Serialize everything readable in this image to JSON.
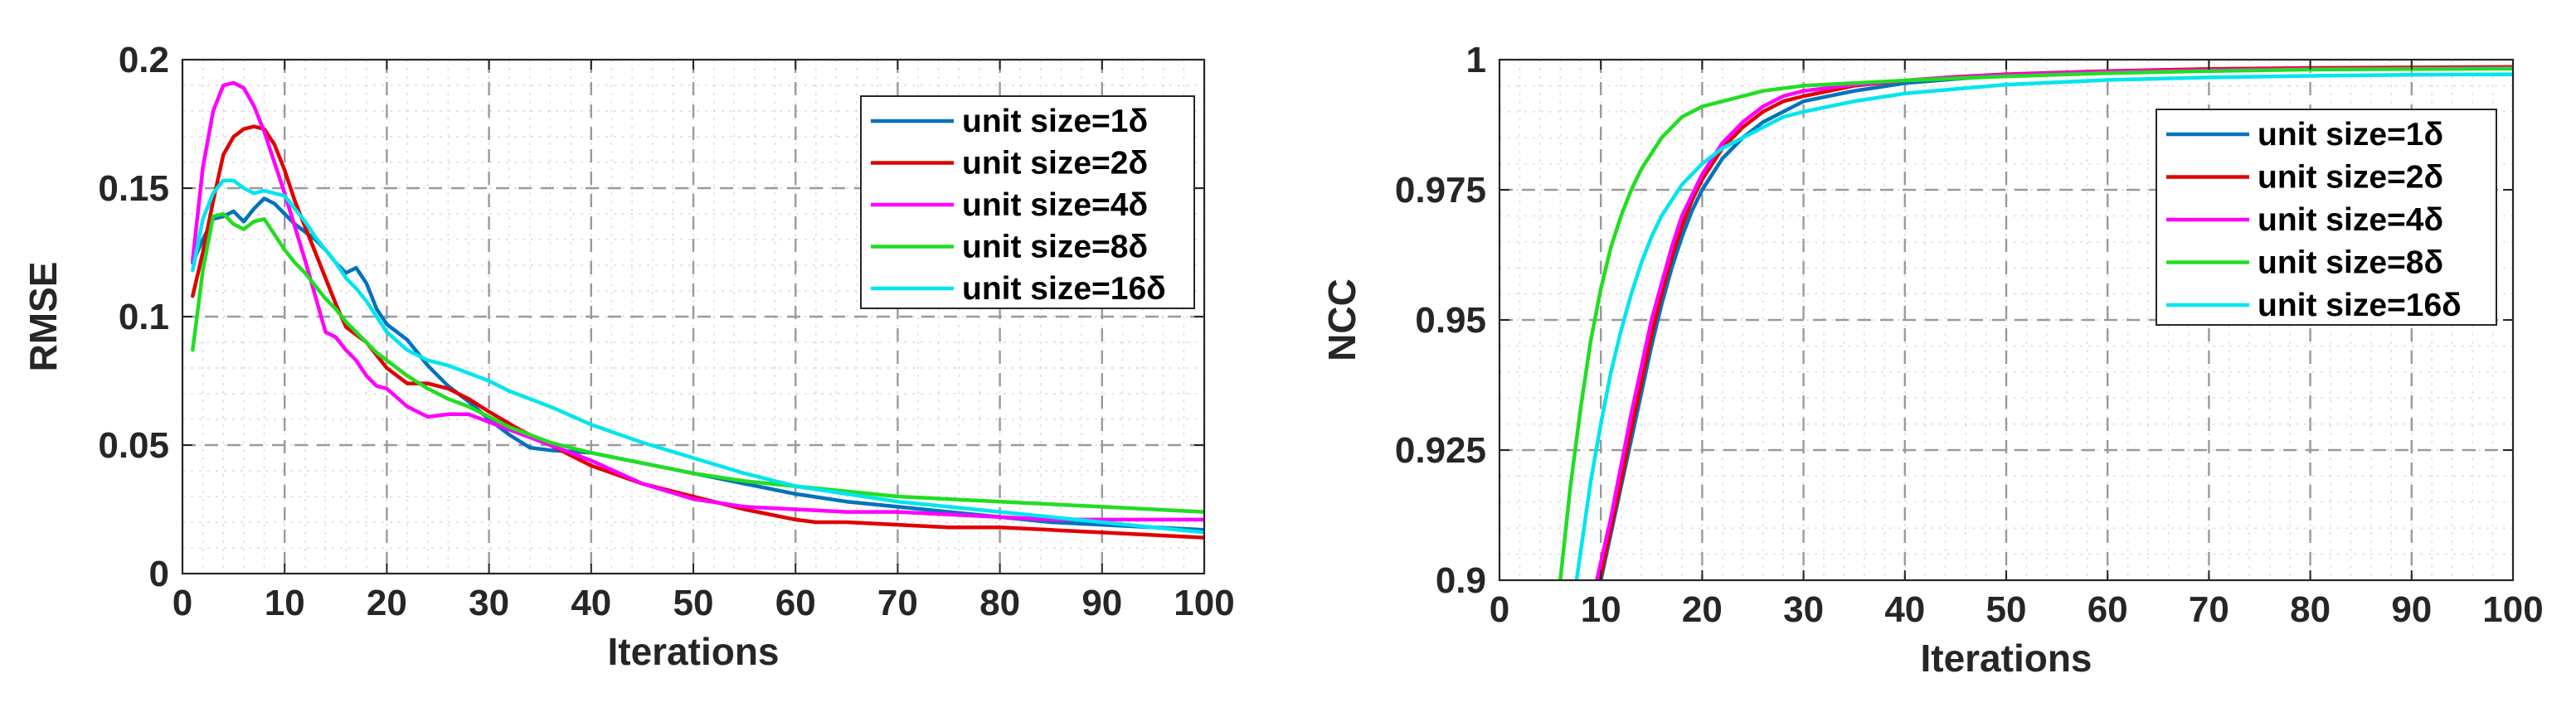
{
  "chart_data": [
    {
      "type": "line",
      "xlabel": "Iterations",
      "ylabel": "RMSE",
      "xlim": [
        0,
        100
      ],
      "ylim": [
        0,
        0.2
      ],
      "xticks": [
        0,
        10,
        20,
        30,
        40,
        50,
        60,
        70,
        80,
        90,
        100
      ],
      "xtick_labels": [
        "0",
        "10",
        "20",
        "30",
        "40",
        "50",
        "60",
        "70",
        "80",
        "90",
        "100"
      ],
      "yticks": [
        0,
        0.05,
        0.1,
        0.15,
        0.2
      ],
      "ytick_labels": [
        "0",
        "0.05",
        "0.1",
        "0.15",
        "0.2"
      ],
      "grid": true,
      "legend_position": "top-right",
      "series": [
        {
          "name": "unit size=1δ",
          "color": "#0072bd",
          "x": [
            1,
            2,
            3,
            4,
            5,
            6,
            7,
            8,
            9,
            10,
            11,
            12,
            13,
            14,
            15,
            16,
            17,
            18,
            19,
            20,
            22,
            24,
            26,
            28,
            30,
            32,
            34,
            36,
            40,
            45,
            50,
            55,
            60,
            65,
            70,
            75,
            80,
            85,
            90,
            95,
            100
          ],
          "y": [
            0.121,
            0.13,
            0.138,
            0.139,
            0.141,
            0.137,
            0.142,
            0.146,
            0.144,
            0.14,
            0.136,
            0.133,
            0.13,
            0.126,
            0.121,
            0.117,
            0.119,
            0.113,
            0.103,
            0.097,
            0.091,
            0.081,
            0.073,
            0.067,
            0.06,
            0.054,
            0.049,
            0.048,
            0.047,
            0.043,
            0.039,
            0.035,
            0.031,
            0.028,
            0.026,
            0.024,
            0.022,
            0.02,
            0.019,
            0.018,
            0.017
          ]
        },
        {
          "name": "unit size=2δ",
          "color": "#e00000",
          "x": [
            1,
            2,
            3,
            4,
            5,
            6,
            7,
            8,
            9,
            10,
            11,
            12,
            13,
            14,
            15,
            16,
            17,
            18,
            19,
            20,
            22,
            24,
            26,
            28,
            30,
            33,
            36,
            40,
            45,
            50,
            55,
            60,
            62,
            65,
            70,
            75,
            80,
            85,
            90,
            95,
            100
          ],
          "y": [
            0.108,
            0.125,
            0.145,
            0.163,
            0.17,
            0.173,
            0.174,
            0.173,
            0.167,
            0.157,
            0.145,
            0.135,
            0.125,
            0.115,
            0.105,
            0.096,
            0.093,
            0.09,
            0.085,
            0.08,
            0.074,
            0.074,
            0.072,
            0.068,
            0.063,
            0.056,
            0.05,
            0.042,
            0.035,
            0.03,
            0.025,
            0.021,
            0.02,
            0.02,
            0.019,
            0.018,
            0.018,
            0.017,
            0.016,
            0.015,
            0.014
          ]
        },
        {
          "name": "unit size=4δ",
          "color": "#ff00ff",
          "x": [
            1,
            2,
            3,
            4,
            5,
            6,
            7,
            8,
            9,
            10,
            11,
            12,
            13,
            14,
            15,
            16,
            17,
            18,
            19,
            20,
            22,
            24,
            26,
            28,
            30,
            32,
            34,
            36,
            40,
            45,
            50,
            55,
            60,
            65,
            70,
            75,
            80,
            85,
            90,
            95,
            100
          ],
          "y": [
            0.122,
            0.158,
            0.18,
            0.19,
            0.191,
            0.189,
            0.182,
            0.172,
            0.16,
            0.148,
            0.135,
            0.122,
            0.108,
            0.094,
            0.092,
            0.087,
            0.083,
            0.077,
            0.073,
            0.072,
            0.065,
            0.061,
            0.062,
            0.062,
            0.059,
            0.056,
            0.053,
            0.05,
            0.044,
            0.035,
            0.029,
            0.026,
            0.025,
            0.024,
            0.024,
            0.023,
            0.022,
            0.021,
            0.021,
            0.021,
            0.021
          ]
        },
        {
          "name": "unit size=8δ",
          "color": "#22dd22",
          "x": [
            1,
            2,
            3,
            4,
            5,
            6,
            7,
            8,
            9,
            10,
            11,
            12,
            13,
            14,
            15,
            16,
            17,
            18,
            19,
            20,
            22,
            24,
            26,
            28,
            30,
            32,
            34,
            36,
            40,
            45,
            50,
            55,
            60,
            65,
            70,
            75,
            80,
            85,
            90,
            95,
            100
          ],
          "y": [
            0.087,
            0.118,
            0.139,
            0.14,
            0.136,
            0.134,
            0.137,
            0.138,
            0.132,
            0.126,
            0.121,
            0.117,
            0.112,
            0.107,
            0.103,
            0.098,
            0.094,
            0.09,
            0.086,
            0.083,
            0.077,
            0.072,
            0.068,
            0.065,
            0.061,
            0.057,
            0.054,
            0.051,
            0.047,
            0.043,
            0.039,
            0.036,
            0.034,
            0.032,
            0.03,
            0.029,
            0.028,
            0.027,
            0.026,
            0.025,
            0.024
          ]
        },
        {
          "name": "unit size=16δ",
          "color": "#00e5ee",
          "x": [
            1,
            2,
            3,
            4,
            5,
            6,
            7,
            8,
            9,
            10,
            11,
            12,
            13,
            14,
            15,
            16,
            17,
            18,
            19,
            20,
            22,
            24,
            26,
            28,
            30,
            32,
            34,
            36,
            40,
            45,
            50,
            55,
            60,
            65,
            70,
            75,
            80,
            85,
            90,
            95,
            100
          ],
          "y": [
            0.118,
            0.138,
            0.148,
            0.153,
            0.153,
            0.15,
            0.148,
            0.149,
            0.148,
            0.147,
            0.142,
            0.137,
            0.131,
            0.126,
            0.121,
            0.115,
            0.111,
            0.106,
            0.1,
            0.094,
            0.087,
            0.083,
            0.081,
            0.078,
            0.075,
            0.071,
            0.068,
            0.065,
            0.058,
            0.051,
            0.045,
            0.039,
            0.034,
            0.031,
            0.028,
            0.026,
            0.024,
            0.022,
            0.02,
            0.018,
            0.016
          ]
        }
      ]
    },
    {
      "type": "line",
      "xlabel": "Iterations",
      "ylabel": "NCC",
      "xlim": [
        0,
        100
      ],
      "ylim": [
        0.9,
        1
      ],
      "xticks": [
        0,
        10,
        20,
        30,
        40,
        50,
        60,
        70,
        80,
        90,
        100
      ],
      "xtick_labels": [
        "0",
        "10",
        "20",
        "30",
        "40",
        "50",
        "60",
        "70",
        "80",
        "90",
        "100"
      ],
      "yticks": [
        0.9,
        0.925,
        0.95,
        0.975,
        1
      ],
      "ytick_labels": [
        "0.9",
        "0.925",
        "0.95",
        "0.975",
        "1"
      ],
      "grid": true,
      "legend_position": "right",
      "series": [
        {
          "name": "unit size=1δ",
          "color": "#0072bd",
          "x": [
            10,
            11,
            12,
            13,
            14,
            15,
            16,
            17,
            18,
            19,
            20,
            22,
            24,
            26,
            28,
            30,
            35,
            40,
            45,
            50,
            60,
            70,
            80,
            90,
            100
          ],
          "y": [
            0.9,
            0.909,
            0.918,
            0.927,
            0.936,
            0.945,
            0.953,
            0.96,
            0.966,
            0.971,
            0.975,
            0.981,
            0.985,
            0.988,
            0.99,
            0.992,
            0.994,
            0.9955,
            0.9963,
            0.997,
            0.9977,
            0.9981,
            0.9983,
            0.9984,
            0.9985
          ]
        },
        {
          "name": "unit size=2δ",
          "color": "#e00000",
          "x": [
            9.9,
            11,
            12,
            13,
            14,
            15,
            16,
            17,
            18,
            19,
            20,
            22,
            24,
            26,
            28,
            30,
            35,
            40,
            45,
            50,
            60,
            70,
            80,
            90,
            100
          ],
          "y": [
            0.9,
            0.91,
            0.919,
            0.929,
            0.938,
            0.947,
            0.955,
            0.962,
            0.968,
            0.973,
            0.977,
            0.983,
            0.987,
            0.99,
            0.992,
            0.993,
            0.995,
            0.996,
            0.9967,
            0.9972,
            0.9978,
            0.9982,
            0.9984,
            0.9985,
            0.9986
          ]
        },
        {
          "name": "unit size=4δ",
          "color": "#ff00ff",
          "x": [
            9.6,
            11,
            12,
            13,
            14,
            15,
            16,
            17,
            18,
            19,
            20,
            22,
            24,
            26,
            28,
            30,
            35,
            40,
            45,
            50,
            60,
            70,
            80,
            90,
            100
          ],
          "y": [
            0.9,
            0.912,
            0.922,
            0.932,
            0.941,
            0.95,
            0.957,
            0.964,
            0.97,
            0.974,
            0.978,
            0.984,
            0.988,
            0.991,
            0.993,
            0.994,
            0.9952,
            0.996,
            0.9966,
            0.9971,
            0.9977,
            0.998,
            0.9982,
            0.9983,
            0.9984
          ]
        },
        {
          "name": "unit size=8δ",
          "color": "#22dd22",
          "x": [
            6,
            7,
            8,
            9,
            10,
            11,
            12,
            13,
            14,
            15,
            16,
            17,
            18,
            20,
            22,
            24,
            26,
            28,
            30,
            35,
            40,
            50,
            60,
            70,
            80,
            90,
            100
          ],
          "y": [
            0.9,
            0.918,
            0.933,
            0.946,
            0.956,
            0.964,
            0.97,
            0.975,
            0.979,
            0.982,
            0.985,
            0.987,
            0.989,
            0.991,
            0.992,
            0.993,
            0.994,
            0.9945,
            0.995,
            0.9955,
            0.996,
            0.9968,
            0.9974,
            0.9978,
            0.9981,
            0.9982,
            0.9983
          ]
        },
        {
          "name": "unit size=16δ",
          "color": "#00e5ee",
          "x": [
            7.6,
            9,
            10,
            11,
            12,
            13,
            14,
            15,
            16,
            17,
            18,
            20,
            22,
            24,
            26,
            28,
            30,
            35,
            40,
            50,
            60,
            70,
            80,
            90,
            100
          ],
          "y": [
            0.9,
            0.919,
            0.93,
            0.94,
            0.948,
            0.955,
            0.961,
            0.966,
            0.97,
            0.973,
            0.976,
            0.98,
            0.983,
            0.985,
            0.987,
            0.989,
            0.99,
            0.992,
            0.9935,
            0.9952,
            0.9961,
            0.9966,
            0.9969,
            0.9971,
            0.9972
          ]
        }
      ]
    }
  ]
}
